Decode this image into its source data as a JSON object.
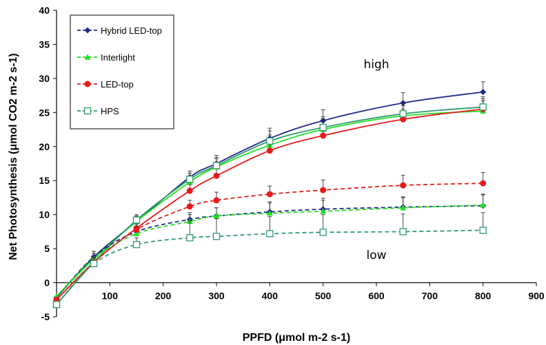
{
  "chart_data": {
    "type": "line",
    "xlabel": "PPFD (μmol m-2 s-1)",
    "ylabel": "Net Photosynthesis (μmol CO2 m-2 s-1)",
    "xlim": [
      0,
      900
    ],
    "ylim": [
      -5,
      40
    ],
    "xticks": [
      100,
      200,
      300,
      400,
      500,
      600,
      700,
      800,
      900
    ],
    "yticks": [
      -5,
      0,
      5,
      10,
      15,
      20,
      25,
      30,
      35,
      40
    ],
    "x": [
      0,
      70,
      150,
      250,
      300,
      400,
      500,
      650,
      800
    ],
    "legend_position": "top-left",
    "legend": [
      {
        "name": "Hybrid LED-top",
        "color": "#1f2a8c",
        "marker": "diamond",
        "dash": true
      },
      {
        "name": "Interlight",
        "color": "#22e022",
        "marker": "triangle",
        "dash": true
      },
      {
        "name": "LED-top",
        "color": "#e81a1a",
        "marker": "circle",
        "dash": true
      },
      {
        "name": "HPS",
        "color": "#2e9a6a",
        "marker": "square-open",
        "dash": true
      }
    ],
    "series": [
      {
        "name": "Hybrid LED-top",
        "group": "high",
        "color": "#1f2a8c",
        "marker": "diamond",
        "dashed": false,
        "values": [
          -2.2,
          3.8,
          9.0,
          15.5,
          17.5,
          21.2,
          23.8,
          26.4,
          28.0
        ],
        "errors": [
          0.6,
          0.8,
          0.8,
          0.9,
          1.2,
          1.5,
          1.6,
          1.5,
          1.5
        ]
      },
      {
        "name": "Interlight",
        "group": "high",
        "color": "#22e022",
        "marker": "triangle",
        "dashed": false,
        "values": [
          -2.0,
          3.5,
          9.0,
          14.8,
          17.0,
          20.2,
          22.5,
          24.5,
          25.2
        ],
        "errors": [
          0.6,
          0.8,
          0.8,
          0.9,
          1.2,
          1.5,
          1.6,
          1.5,
          1.5
        ]
      },
      {
        "name": "LED-top",
        "group": "high",
        "color": "#e81a1a",
        "marker": "circle",
        "dashed": false,
        "values": [
          -2.5,
          3.0,
          8.0,
          13.5,
          15.7,
          19.4,
          21.6,
          24.0,
          25.5
        ],
        "errors": [
          0.6,
          0.8,
          0.8,
          0.9,
          1.2,
          1.5,
          1.6,
          1.5,
          1.5
        ]
      },
      {
        "name": "HPS",
        "group": "high",
        "color": "#2e9a6a",
        "marker": "square-open",
        "dashed": false,
        "values": [
          -3.2,
          3.0,
          9.2,
          15.2,
          17.2,
          20.8,
          22.8,
          24.8,
          25.8
        ],
        "errors": [
          0.6,
          0.8,
          0.8,
          0.9,
          1.2,
          1.5,
          1.6,
          1.5,
          1.5
        ]
      },
      {
        "name": "Hybrid LED-top",
        "group": "low",
        "color": "#1f2a8c",
        "marker": "diamond",
        "dashed": true,
        "values": [
          -2.2,
          3.8,
          7.5,
          9.3,
          9.8,
          10.4,
          10.8,
          11.1,
          11.3
        ],
        "errors": [
          0.6,
          0.8,
          0.8,
          1.0,
          1.2,
          1.5,
          1.6,
          1.5,
          1.6
        ]
      },
      {
        "name": "Interlight",
        "group": "low",
        "color": "#22e022",
        "marker": "triangle",
        "dashed": true,
        "values": [
          -2.0,
          3.5,
          7.2,
          9.0,
          9.8,
          10.2,
          10.5,
          11.0,
          11.4
        ],
        "errors": [
          0.6,
          0.8,
          0.8,
          1.0,
          1.2,
          1.5,
          1.6,
          1.5,
          1.6
        ]
      },
      {
        "name": "LED-top",
        "group": "low",
        "color": "#e81a1a",
        "marker": "circle",
        "dashed": true,
        "values": [
          -2.5,
          3.0,
          7.8,
          11.2,
          12.1,
          13.0,
          13.6,
          14.3,
          14.6
        ],
        "errors": [
          0.6,
          0.8,
          0.8,
          0.9,
          1.2,
          1.2,
          1.5,
          1.5,
          1.6
        ]
      },
      {
        "name": "HPS",
        "group": "low",
        "color": "#2e9a6a",
        "marker": "square-open",
        "dashed": true,
        "values": [
          -3.2,
          2.8,
          5.6,
          6.6,
          6.8,
          7.2,
          7.4,
          7.5,
          7.7
        ],
        "errors": [
          0.6,
          0.8,
          1.0,
          2.5,
          2.6,
          2.5,
          2.6,
          2.6,
          2.6
        ]
      }
    ],
    "annotations": [
      {
        "text": "high",
        "x": 600,
        "y": 31.5
      },
      {
        "text": "low",
        "x": 600,
        "y": 3.5
      }
    ],
    "grid": false
  }
}
